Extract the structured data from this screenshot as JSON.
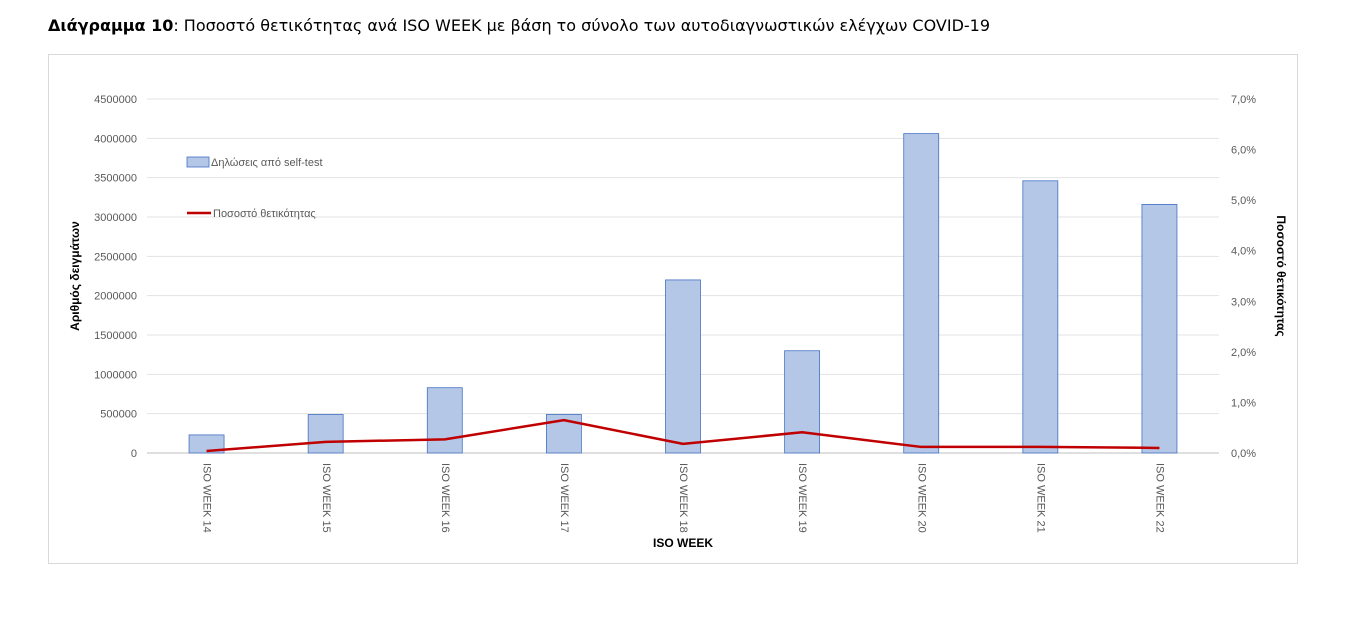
{
  "header": {
    "title_bold": "Διάγραμμα 10",
    "title_rest": ": Ποσοστό θετικότητας ανά ISO WEEK με βάση το σύνολο των αυτοδιαγνωστικών ελέγχων COVID-19"
  },
  "chart_data": {
    "type": "bar",
    "categories": [
      "ISO WEEK 14",
      "ISO WEEK 15",
      "ISO WEEK 16",
      "ISO WEEK 17",
      "ISO WEEK 18",
      "ISO WEEK 19",
      "ISO WEEK 20",
      "ISO WEEK 21",
      "ISO WEEK 22"
    ],
    "series": [
      {
        "name": "Δηλώσεις από self-test",
        "type": "bar",
        "axis": "left",
        "color": "#b4c7e7",
        "values": [
          230000,
          490000,
          830000,
          490000,
          2200000,
          1300000,
          4060000,
          3460000,
          3160000
        ]
      },
      {
        "name": "Ποσοστό θετικότητας",
        "type": "line",
        "axis": "right",
        "color": "#c00000",
        "values": [
          0.0004,
          0.0022,
          0.0027,
          0.0065,
          0.0018,
          0.0041,
          0.0012,
          0.0012,
          0.001
        ]
      }
    ],
    "xlabel": "ISO WEEK",
    "ylabel": "Αριθμός δειγμάτων",
    "y2label": "Ποσοστό θετικότητας",
    "ylim": [
      0,
      4500000
    ],
    "y2lim": [
      0,
      0.07
    ],
    "yticks": [
      "0",
      "500000",
      "1000000",
      "1500000",
      "2000000",
      "2500000",
      "3000000",
      "3500000",
      "4000000",
      "4500000"
    ],
    "y2ticks": [
      "0,0%",
      "1,0%",
      "2,0%",
      "3,0%",
      "4,0%",
      "5,0%",
      "6,0%",
      "7,0%"
    ],
    "grid": true,
    "legend": "top-left"
  }
}
